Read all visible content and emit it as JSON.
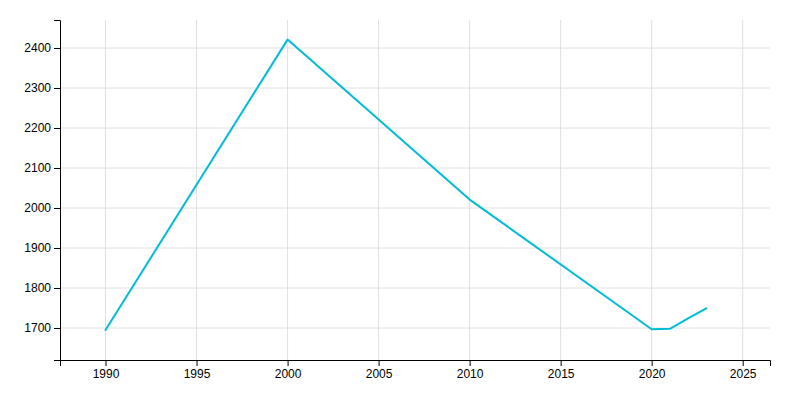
{
  "chart_data": {
    "type": "line",
    "x": [
      1990,
      2000,
      2010,
      2020,
      2021,
      2022,
      2023
    ],
    "values": [
      1695,
      2421,
      2021,
      1697,
      1698,
      1724,
      1749
    ],
    "color": "#00BCD4",
    "xlim": [
      1987.5,
      2026.5
    ],
    "xticks": [
      1990,
      1995,
      2000,
      2005,
      2010,
      2015,
      2020,
      2025
    ],
    "ylim": [
      1620,
      2470
    ],
    "yticks": [
      1700,
      1800,
      1900,
      2000,
      2100,
      2200,
      2300,
      2400
    ],
    "grid": true
  }
}
